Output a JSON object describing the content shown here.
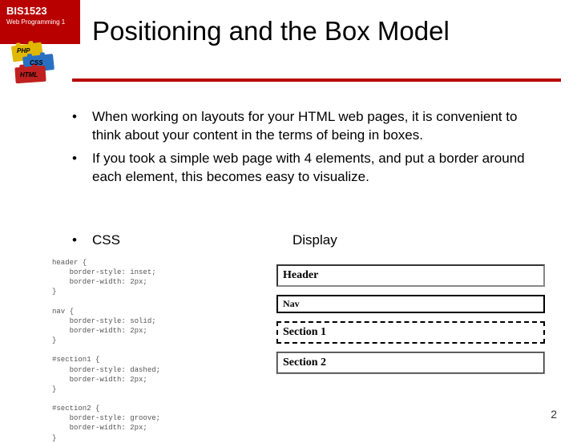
{
  "course": {
    "code": "BIS1523",
    "name": "Web Programming 1"
  },
  "bricks": {
    "php": "PHP",
    "css": "CSS",
    "html": "HTML"
  },
  "title": "Positioning and the Box Model",
  "colors": {
    "accent": "#b80000"
  },
  "bullets": [
    "When working on layouts for your HTML web pages, it is convenient to think about your content in the terms of being in boxes.",
    "If you took a simple web page with 4 elements, and put a border around each element, this becomes easy to visualize."
  ],
  "css_heading": "CSS",
  "display_heading": "Display",
  "code": "header {\n    border-style: inset;\n    border-width: 2px;\n}\n\nnav {\n    border-style: solid;\n    border-width: 2px;\n}\n\n#section1 {\n    border-style: dashed;\n    border-width: 2px;\n}\n\n#section2 {\n    border-style: groove;\n    border-width: 2px;\n}",
  "display": {
    "header": "Header",
    "nav": "Nav",
    "s1": "Section 1",
    "s2": "Section 2"
  },
  "page_number": "2"
}
